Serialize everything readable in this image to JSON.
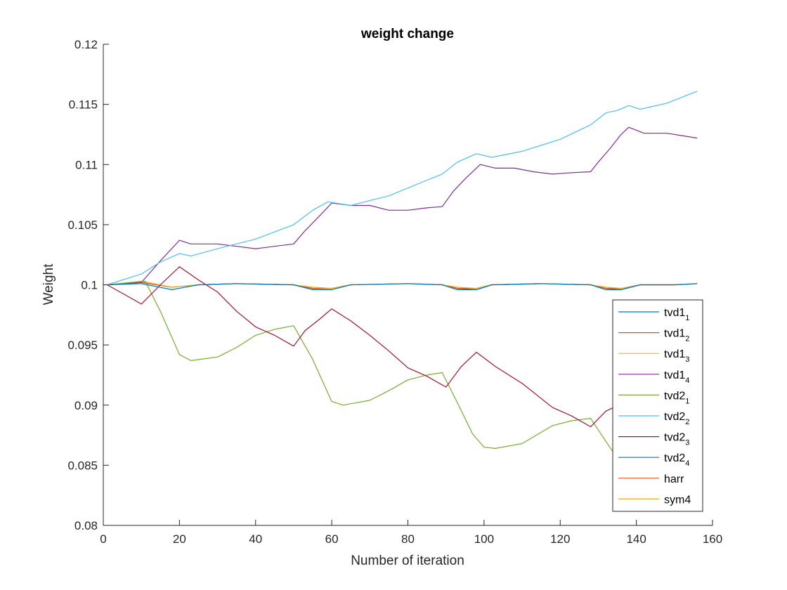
{
  "chart_data": {
    "type": "line",
    "title": "weight change",
    "xlabel": "Number of iteration",
    "ylabel": "Weight",
    "xlim": [
      0,
      160
    ],
    "ylim": [
      0.08,
      0.12
    ],
    "xticks": [
      "0",
      "20",
      "40",
      "60",
      "80",
      "100",
      "120",
      "140",
      "160"
    ],
    "yticks": [
      "0.08",
      "0.085",
      "0.09",
      "0.095",
      "0.1",
      "0.105",
      "0.11",
      "0.115",
      "0.12"
    ],
    "grid": false,
    "legend_position": "bottom-right",
    "series": [
      {
        "name": "tvd1",
        "sub": "1",
        "color": "#0072BD",
        "points": [
          [
            1,
            0.1
          ],
          [
            10,
            0.1002
          ],
          [
            18,
            0.0998
          ],
          [
            25,
            0.1
          ],
          [
            35,
            0.1001
          ],
          [
            50,
            0.1
          ],
          [
            55,
            0.0997
          ],
          [
            60,
            0.0997
          ],
          [
            65,
            0.1
          ],
          [
            80,
            0.1001
          ],
          [
            89,
            0.1
          ],
          [
            93,
            0.0997
          ],
          [
            98,
            0.0996
          ],
          [
            102,
            0.1
          ],
          [
            115,
            0.1001
          ],
          [
            128,
            0.1
          ],
          [
            132,
            0.0997
          ],
          [
            136,
            0.0996
          ],
          [
            141,
            0.1
          ],
          [
            150,
            0.1
          ],
          [
            156,
            0.1001
          ]
        ]
      },
      {
        "name": "tvd1",
        "sub": "2",
        "color": "#D95319",
        "points": [
          [
            1,
            0.1
          ],
          [
            10,
            0.1002
          ],
          [
            18,
            0.0998
          ],
          [
            25,
            0.1
          ],
          [
            35,
            0.1001
          ],
          [
            50,
            0.1
          ],
          [
            55,
            0.0997
          ],
          [
            60,
            0.0997
          ],
          [
            65,
            0.1
          ],
          [
            80,
            0.1001
          ],
          [
            89,
            0.1
          ],
          [
            93,
            0.0997
          ],
          [
            98,
            0.0997
          ],
          [
            102,
            0.1
          ],
          [
            115,
            0.1001
          ],
          [
            128,
            0.1
          ],
          [
            132,
            0.0997
          ],
          [
            136,
            0.0997
          ],
          [
            141,
            0.1
          ],
          [
            150,
            0.1
          ],
          [
            156,
            0.1001
          ]
        ]
      },
      {
        "name": "tvd1",
        "sub": "3",
        "color": "#EDB120",
        "points": [
          [
            1,
            0.1
          ],
          [
            10,
            0.1003
          ],
          [
            18,
            0.0998
          ],
          [
            25,
            0.1
          ],
          [
            35,
            0.1001
          ],
          [
            50,
            0.1
          ],
          [
            55,
            0.0998
          ],
          [
            60,
            0.0997
          ],
          [
            65,
            0.1
          ],
          [
            80,
            0.1001
          ],
          [
            89,
            0.1
          ],
          [
            93,
            0.0998
          ],
          [
            98,
            0.0997
          ],
          [
            102,
            0.1
          ],
          [
            115,
            0.1001
          ],
          [
            128,
            0.1
          ],
          [
            132,
            0.0998
          ],
          [
            136,
            0.0997
          ],
          [
            141,
            0.1
          ],
          [
            150,
            0.1
          ],
          [
            156,
            0.1001
          ]
        ]
      },
      {
        "name": "tvd1",
        "sub": "4",
        "color": "#7E2F8E",
        "points": [
          [
            1,
            0.1
          ],
          [
            10,
            0.1002
          ],
          [
            15,
            0.102
          ],
          [
            20,
            0.1037
          ],
          [
            23,
            0.1034
          ],
          [
            30,
            0.1034
          ],
          [
            35,
            0.1032
          ],
          [
            40,
            0.103
          ],
          [
            45,
            0.1032
          ],
          [
            50,
            0.1034
          ],
          [
            53,
            0.1045
          ],
          [
            57,
            0.1058
          ],
          [
            60,
            0.1068
          ],
          [
            65,
            0.1066
          ],
          [
            70,
            0.1066
          ],
          [
            75,
            0.1062
          ],
          [
            80,
            0.1062
          ],
          [
            85,
            0.1064
          ],
          [
            89,
            0.1065
          ],
          [
            92,
            0.1078
          ],
          [
            95,
            0.1088
          ],
          [
            99,
            0.11
          ],
          [
            103,
            0.1097
          ],
          [
            108,
            0.1097
          ],
          [
            113,
            0.1094
          ],
          [
            118,
            0.1092
          ],
          [
            122,
            0.1093
          ],
          [
            128,
            0.1094
          ],
          [
            130,
            0.1102
          ],
          [
            133,
            0.1113
          ],
          [
            136,
            0.1125
          ],
          [
            138,
            0.1131
          ],
          [
            142,
            0.1126
          ],
          [
            148,
            0.1126
          ],
          [
            152,
            0.1124
          ],
          [
            156,
            0.1122
          ]
        ]
      },
      {
        "name": "tvd2",
        "sub": "1",
        "color": "#77AC30",
        "points": [
          [
            1,
            0.1
          ],
          [
            11,
            0.1003
          ],
          [
            15,
            0.0978
          ],
          [
            20,
            0.0942
          ],
          [
            23,
            0.0937
          ],
          [
            30,
            0.094
          ],
          [
            35,
            0.0948
          ],
          [
            40,
            0.0958
          ],
          [
            45,
            0.0963
          ],
          [
            50,
            0.0966
          ],
          [
            55,
            0.0938
          ],
          [
            60,
            0.0903
          ],
          [
            63,
            0.09
          ],
          [
            70,
            0.0904
          ],
          [
            75,
            0.0912
          ],
          [
            80,
            0.0921
          ],
          [
            85,
            0.0925
          ],
          [
            89,
            0.0927
          ],
          [
            93,
            0.0902
          ],
          [
            97,
            0.0876
          ],
          [
            100,
            0.0865
          ],
          [
            103,
            0.0864
          ],
          [
            110,
            0.0868
          ],
          [
            118,
            0.0883
          ],
          [
            123,
            0.0887
          ],
          [
            128,
            0.0889
          ],
          [
            133,
            0.0865
          ],
          [
            136,
            0.0852
          ]
        ]
      },
      {
        "name": "tvd2",
        "sub": "2",
        "color": "#4DBEEE",
        "points": [
          [
            1,
            0.1
          ],
          [
            10,
            0.1009
          ],
          [
            15,
            0.1019
          ],
          [
            20,
            0.1026
          ],
          [
            23,
            0.1024
          ],
          [
            30,
            0.103
          ],
          [
            40,
            0.1038
          ],
          [
            50,
            0.105
          ],
          [
            55,
            0.1062
          ],
          [
            59,
            0.1069
          ],
          [
            65,
            0.1066
          ],
          [
            75,
            0.1074
          ],
          [
            85,
            0.1087
          ],
          [
            89,
            0.1092
          ],
          [
            93,
            0.1102
          ],
          [
            98,
            0.1109
          ],
          [
            102,
            0.1106
          ],
          [
            110,
            0.1111
          ],
          [
            120,
            0.1121
          ],
          [
            128,
            0.1133
          ],
          [
            132,
            0.1143
          ],
          [
            135,
            0.1145
          ],
          [
            138,
            0.1149
          ],
          [
            141,
            0.1146
          ],
          [
            148,
            0.1151
          ],
          [
            156,
            0.1161
          ]
        ]
      },
      {
        "name": "tvd2",
        "sub": "3",
        "color": "#A2142F",
        "points": [
          [
            1,
            0.1
          ],
          [
            5,
            0.0993
          ],
          [
            10,
            0.0984
          ],
          [
            15,
            0.1
          ],
          [
            20,
            0.1015
          ],
          [
            25,
            0.1004
          ],
          [
            30,
            0.0994
          ],
          [
            35,
            0.0978
          ],
          [
            40,
            0.0965
          ],
          [
            45,
            0.0958
          ],
          [
            50,
            0.0949
          ],
          [
            53,
            0.0962
          ],
          [
            57,
            0.0972
          ],
          [
            60,
            0.098
          ],
          [
            65,
            0.097
          ],
          [
            70,
            0.0958
          ],
          [
            75,
            0.0945
          ],
          [
            80,
            0.0931
          ],
          [
            85,
            0.0924
          ],
          [
            90,
            0.0915
          ],
          [
            94,
            0.0932
          ],
          [
            98,
            0.0944
          ],
          [
            103,
            0.0932
          ],
          [
            110,
            0.0918
          ],
          [
            118,
            0.0898
          ],
          [
            123,
            0.0891
          ],
          [
            128,
            0.0882
          ],
          [
            132,
            0.0895
          ],
          [
            136,
            0.0901
          ]
        ]
      },
      {
        "name": "tvd2",
        "sub": "4",
        "color": "#0072BD",
        "points": [
          [
            1,
            0.1
          ],
          [
            10,
            0.1001
          ],
          [
            18,
            0.0996
          ],
          [
            25,
            0.1
          ],
          [
            35,
            0.1001
          ],
          [
            50,
            0.1
          ],
          [
            55,
            0.0996
          ],
          [
            60,
            0.0996
          ],
          [
            65,
            0.1
          ],
          [
            80,
            0.1001
          ],
          [
            89,
            0.1
          ],
          [
            93,
            0.0996
          ],
          [
            98,
            0.0996
          ],
          [
            102,
            0.1
          ],
          [
            115,
            0.1001
          ],
          [
            128,
            0.1
          ],
          [
            132,
            0.0996
          ],
          [
            136,
            0.0996
          ],
          [
            141,
            0.1
          ],
          [
            150,
            0.1
          ],
          [
            156,
            0.1001
          ]
        ]
      },
      {
        "name": "harr",
        "sub": "",
        "color": "#D95319",
        "points": []
      },
      {
        "name": "sym4",
        "sub": "",
        "color": "#EDB120",
        "points": []
      }
    ]
  }
}
